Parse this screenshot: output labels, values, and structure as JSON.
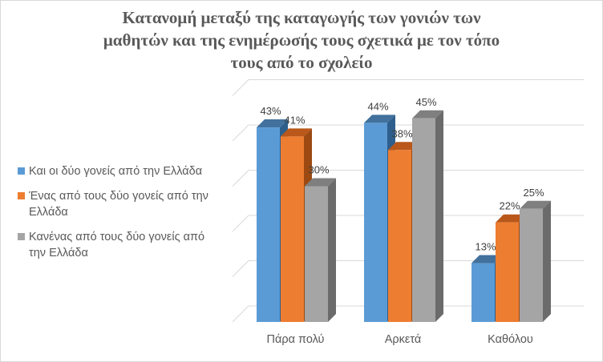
{
  "chart_data": {
    "type": "bar",
    "title_lines": [
      "Κατανομή μεταξύ της καταγωγής των γονιών των",
      "μαθητών και της ενημέρωσής τους σχετικά με τον τόπο",
      "τους από το σχολείο"
    ],
    "categories": [
      "Πάρα πολύ",
      "Αρκετά",
      "Καθόλου"
    ],
    "series": [
      {
        "name": "Και οι δύο γονείς από την Ελλάδα",
        "values": [
          43,
          44,
          13
        ],
        "labels": [
          "43%",
          "44%",
          "13%"
        ],
        "color": "#5b9bd5",
        "side_color": "#2e5f8c",
        "top_color": "#41719c"
      },
      {
        "name": "Ένας από τους δύο γονείς από την Ελλάδα",
        "values": [
          41,
          38,
          22
        ],
        "labels": [
          "41%",
          "38%",
          "22%"
        ],
        "color": "#ed7d31",
        "side_color": "#9c4a12",
        "top_color": "#b9581a"
      },
      {
        "name": "Κανένας από τους δύο γονείς από την Ελλάδα",
        "values": [
          30,
          45,
          25
        ],
        "labels": [
          "30%",
          "45%",
          "25%"
        ],
        "color": "#a5a5a5",
        "side_color": "#6b6b6b",
        "top_color": "#7f7f7f"
      }
    ],
    "ylim": [
      0,
      50
    ],
    "grid": true,
    "legend": "left",
    "style": "3d-clustered-column"
  }
}
